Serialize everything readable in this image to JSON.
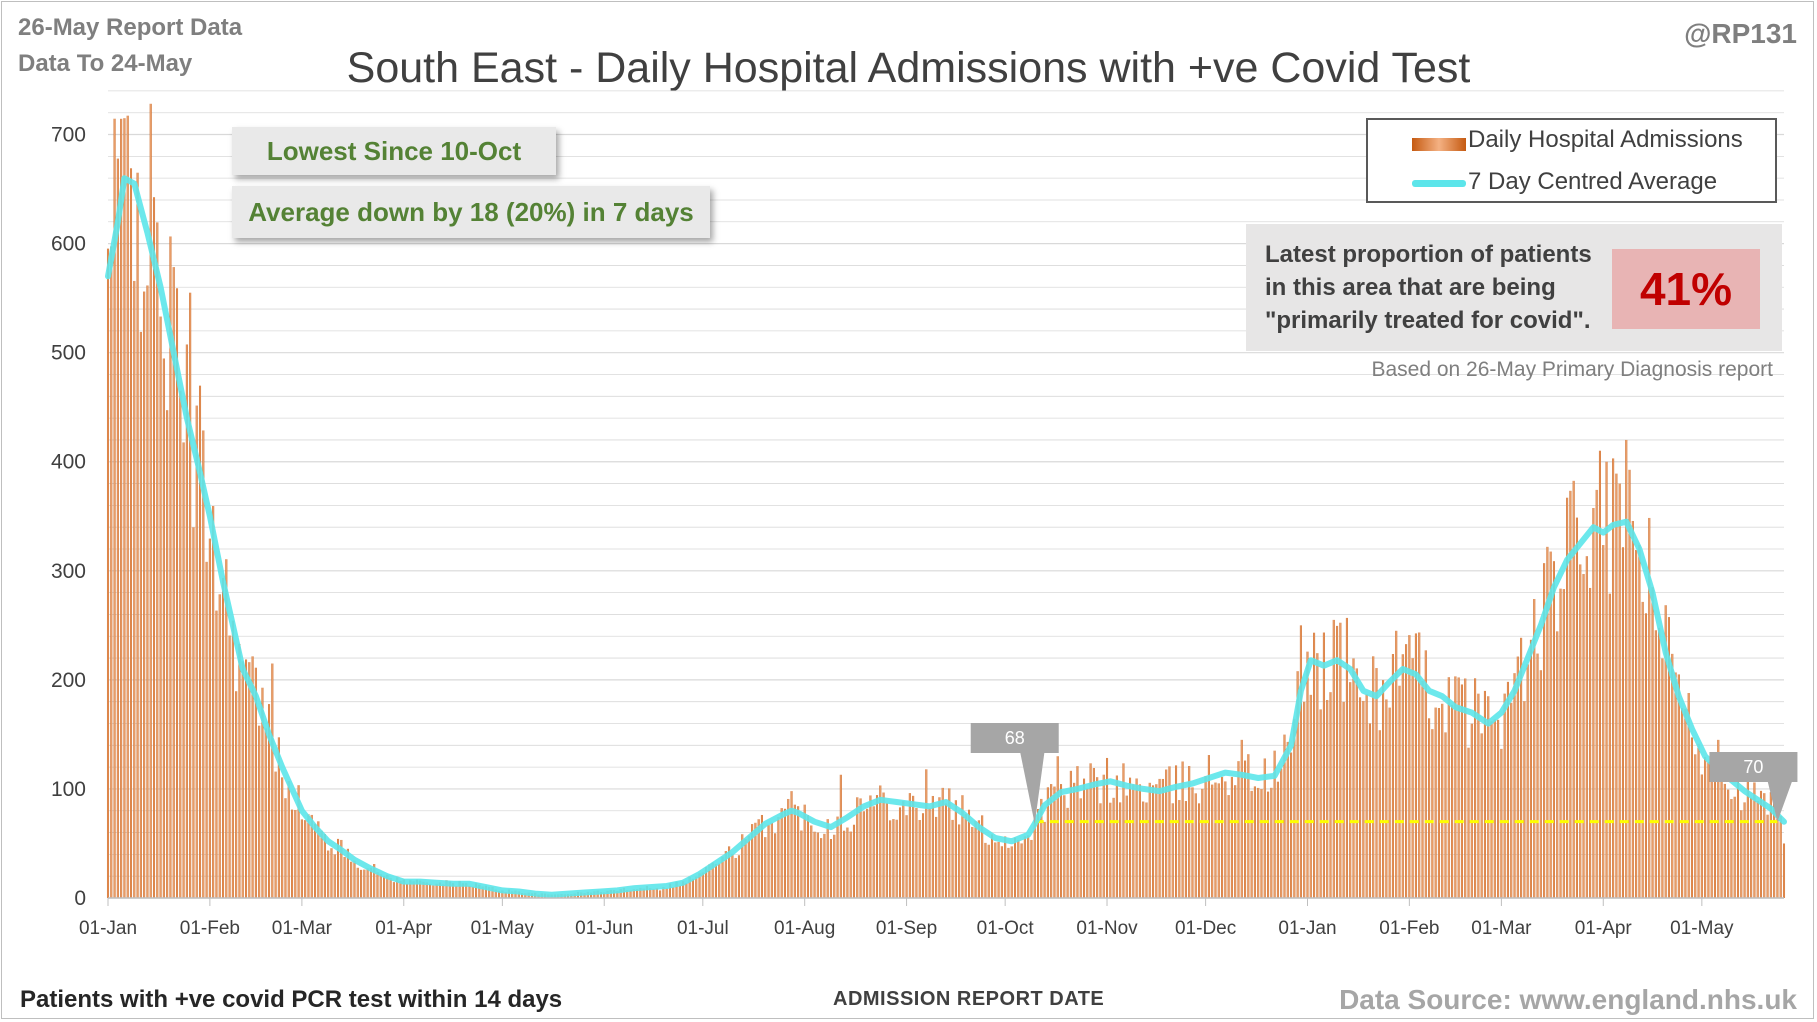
{
  "header": {
    "report_line1": "26-May Report Data",
    "report_line2": "Data To 24-May",
    "handle": "@RP131",
    "title": "South East - Daily Hospital Admissions with +ve Covid Test"
  },
  "info_boxes": {
    "lowest": "Lowest Since 10-Oct",
    "average": "Average down by 18 (20%) in 7 days"
  },
  "legend": {
    "bars_label": "Daily Hospital Admissions",
    "line_label": "7 Day Centred Average"
  },
  "proportion": {
    "text_line1": "Latest proportion of patients",
    "text_line2": "in this area that are being",
    "text_line3": "\"primarily treated for covid\".",
    "value": "41%",
    "note": "Based on 26-May Primary Diagnosis report"
  },
  "footer": {
    "left": "Patients with +ve covid PCR test within 14 days",
    "xlabel": "ADMISSION REPORT DATE",
    "source": "Data Source: www.england.nhs.uk"
  },
  "colors": {
    "bar": "#c55a11",
    "bar_light": "#f4b183",
    "line": "#5ce5ea",
    "reference": "#ffff00",
    "callout": "#a6a6a6",
    "grid": "#d9d9d9"
  },
  "chart_data": {
    "type": "bar",
    "title": "South East - Daily Hospital Admissions with +ve Covid Test",
    "xlabel": "ADMISSION REPORT DATE",
    "ylabel": "",
    "ylim": [
      0,
      750
    ],
    "yticks": [
      0,
      100,
      200,
      300,
      400,
      500,
      600,
      700
    ],
    "grid": true,
    "legend_position": "top-right",
    "x_start": "01-Jan",
    "x_end": "24-May",
    "x_tick_labels": [
      "01-Jan",
      "01-Feb",
      "01-Mar",
      "01-Apr",
      "01-May",
      "01-Jun",
      "01-Jul",
      "01-Aug",
      "01-Sep",
      "01-Oct",
      "01-Nov",
      "01-Dec",
      "01-Jan",
      "01-Feb",
      "01-Mar",
      "01-Apr",
      "01-May"
    ],
    "x_tick_day_index": [
      0,
      31,
      59,
      90,
      120,
      151,
      181,
      212,
      243,
      273,
      304,
      334,
      365,
      396,
      424,
      455,
      485
    ],
    "reference_line": {
      "value": 70,
      "from_day": 282,
      "to_day": 508
    },
    "callouts": [
      {
        "label": "68",
        "day": 282,
        "value": 68
      },
      {
        "label": "70",
        "day": 508,
        "value": 70
      }
    ],
    "series": [
      {
        "name": "7 Day Centred Average",
        "kind": "line",
        "anchors": [
          [
            0,
            570
          ],
          [
            3,
            620
          ],
          [
            5,
            660
          ],
          [
            8,
            655
          ],
          [
            12,
            610
          ],
          [
            16,
            560
          ],
          [
            20,
            500
          ],
          [
            24,
            440
          ],
          [
            28,
            390
          ],
          [
            31,
            350
          ],
          [
            35,
            290
          ],
          [
            38,
            250
          ],
          [
            41,
            210
          ],
          [
            45,
            185
          ],
          [
            49,
            150
          ],
          [
            53,
            120
          ],
          [
            56,
            100
          ],
          [
            59,
            80
          ],
          [
            63,
            65
          ],
          [
            67,
            52
          ],
          [
            71,
            44
          ],
          [
            75,
            35
          ],
          [
            80,
            27
          ],
          [
            85,
            20
          ],
          [
            90,
            15
          ],
          [
            95,
            15
          ],
          [
            100,
            14
          ],
          [
            105,
            13
          ],
          [
            110,
            13
          ],
          [
            115,
            10
          ],
          [
            120,
            7
          ],
          [
            125,
            6
          ],
          [
            130,
            4
          ],
          [
            135,
            3
          ],
          [
            140,
            4
          ],
          [
            145,
            5
          ],
          [
            150,
            6
          ],
          [
            155,
            7
          ],
          [
            160,
            9
          ],
          [
            165,
            10
          ],
          [
            170,
            11
          ],
          [
            175,
            14
          ],
          [
            180,
            22
          ],
          [
            185,
            32
          ],
          [
            190,
            42
          ],
          [
            195,
            55
          ],
          [
            200,
            68
          ],
          [
            205,
            76
          ],
          [
            208,
            80
          ],
          [
            210,
            78
          ],
          [
            215,
            70
          ],
          [
            220,
            65
          ],
          [
            225,
            74
          ],
          [
            230,
            84
          ],
          [
            235,
            90
          ],
          [
            240,
            88
          ],
          [
            245,
            86
          ],
          [
            250,
            84
          ],
          [
            255,
            88
          ],
          [
            260,
            78
          ],
          [
            265,
            65
          ],
          [
            270,
            55
          ],
          [
            275,
            52
          ],
          [
            280,
            58
          ],
          [
            282,
            68
          ],
          [
            285,
            85
          ],
          [
            290,
            97
          ],
          [
            295,
            100
          ],
          [
            300,
            104
          ],
          [
            305,
            107
          ],
          [
            310,
            103
          ],
          [
            315,
            100
          ],
          [
            320,
            98
          ],
          [
            325,
            102
          ],
          [
            330,
            105
          ],
          [
            335,
            110
          ],
          [
            340,
            115
          ],
          [
            345,
            113
          ],
          [
            350,
            110
          ],
          [
            355,
            112
          ],
          [
            360,
            140
          ],
          [
            363,
            190
          ],
          [
            366,
            218
          ],
          [
            370,
            213
          ],
          [
            374,
            218
          ],
          [
            378,
            210
          ],
          [
            382,
            190
          ],
          [
            386,
            185
          ],
          [
            390,
            198
          ],
          [
            394,
            210
          ],
          [
            398,
            205
          ],
          [
            402,
            190
          ],
          [
            406,
            185
          ],
          [
            410,
            175
          ],
          [
            415,
            170
          ],
          [
            420,
            160
          ],
          [
            424,
            170
          ],
          [
            428,
            190
          ],
          [
            432,
            220
          ],
          [
            436,
            250
          ],
          [
            440,
            285
          ],
          [
            444,
            310
          ],
          [
            448,
            325
          ],
          [
            452,
            340
          ],
          [
            455,
            335
          ],
          [
            458,
            342
          ],
          [
            462,
            345
          ],
          [
            466,
            320
          ],
          [
            470,
            280
          ],
          [
            474,
            225
          ],
          [
            478,
            185
          ],
          [
            482,
            155
          ],
          [
            486,
            130
          ],
          [
            490,
            118
          ],
          [
            494,
            108
          ],
          [
            498,
            98
          ],
          [
            502,
            90
          ],
          [
            506,
            82
          ],
          [
            510,
            70
          ]
        ]
      },
      {
        "name": "Daily Hospital Admissions",
        "kind": "bar",
        "approximate_peaks": [
          [
            5,
            715
          ],
          [
            9,
            665
          ],
          [
            25,
            555
          ],
          [
            50,
            215
          ],
          [
            168,
            7
          ],
          [
            208,
            98
          ],
          [
            223,
            113
          ],
          [
            249,
            118
          ],
          [
            289,
            130
          ],
          [
            345,
            145
          ],
          [
            363,
            250
          ],
          [
            373,
            255
          ],
          [
            392,
            245
          ],
          [
            420,
            185
          ],
          [
            456,
            400
          ],
          [
            460,
            380
          ],
          [
            470,
            285
          ],
          [
            478,
            205
          ],
          [
            490,
            145
          ],
          [
            510,
            50
          ]
        ]
      }
    ]
  }
}
